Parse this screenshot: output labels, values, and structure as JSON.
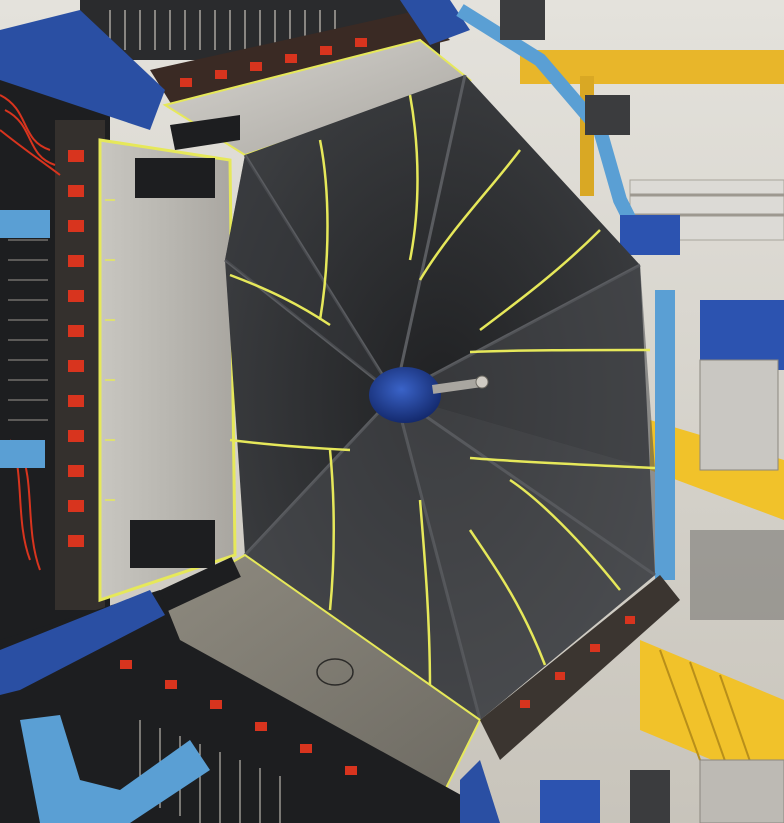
{
  "photo": {
    "subject": "detector-endcap-with-foil-covered-petals",
    "palette": {
      "wall": "#d9d6cf",
      "yellow_rail": "#e8b62a",
      "frame_blue": "#2a4fa3",
      "light_blue": "#5a9fd4",
      "foil_dark": "#2e2f31",
      "foil_mid": "#45474a",
      "tape_yellow": "#e6e85a",
      "metal_panel": "#b7b4ad",
      "cable_red": "#d8341e",
      "electronics_dark": "#1d1e20"
    }
  }
}
